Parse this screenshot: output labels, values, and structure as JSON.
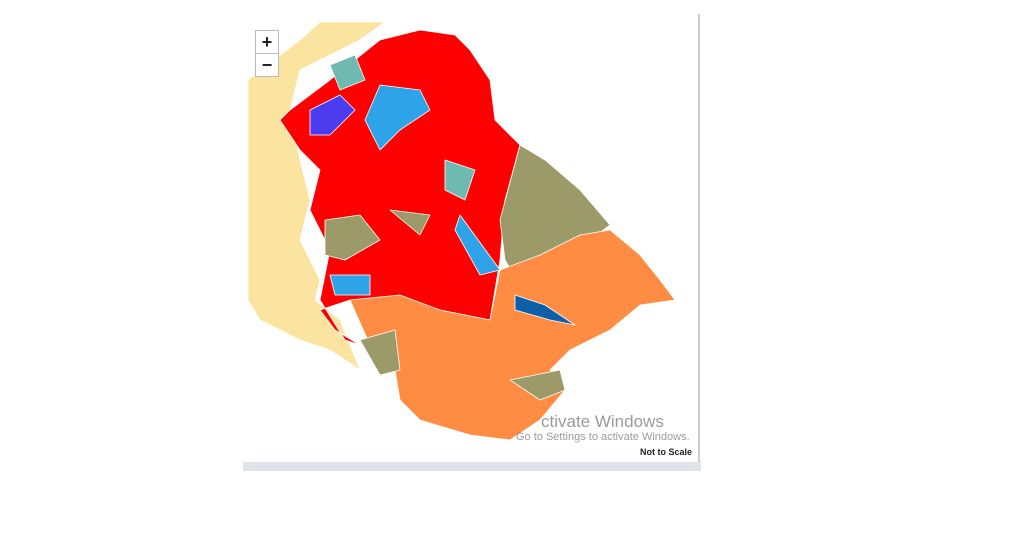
{
  "zoom_controls": {
    "zoom_in": "+",
    "zoom_out": "−"
  },
  "watermark": {
    "title": "ctivate Windows",
    "subtitle": "Go to Settings to activate Windows."
  },
  "map": {
    "note": "Not to Scale"
  }
}
